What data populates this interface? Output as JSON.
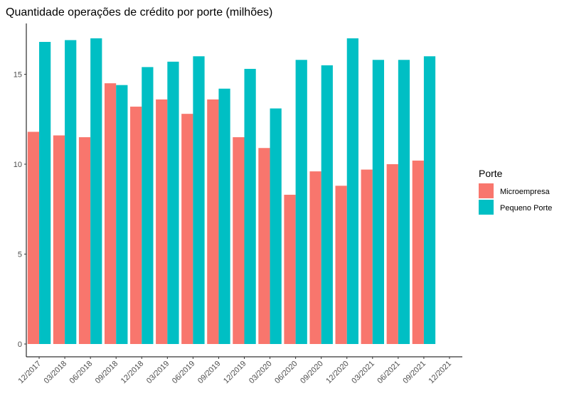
{
  "chart_data": {
    "type": "bar",
    "title": "Quantidade operações de crédito por porte (milhões)",
    "xlabel": "",
    "ylabel": "",
    "ylim": [
      0,
      17.8
    ],
    "y_ticks": [
      "0",
      "5",
      "10",
      "15"
    ],
    "categories": [
      "12/2017",
      "03/2018",
      "06/2018",
      "09/2018",
      "12/2018",
      "03/2019",
      "06/2019",
      "09/2019",
      "12/2019",
      "03/2020",
      "06/2020",
      "09/2020",
      "12/2020",
      "03/2021",
      "06/2021",
      "09/2021",
      "12/2021"
    ],
    "series": [
      {
        "name": "Microempresa",
        "color": "#f8766d",
        "values": [
          11.8,
          11.6,
          11.5,
          14.5,
          13.2,
          13.6,
          12.8,
          13.6,
          11.5,
          10.9,
          8.3,
          9.6,
          8.8,
          9.7,
          10.0,
          10.2,
          null
        ]
      },
      {
        "name": "Pequeno Porte",
        "color": "#00bfc4",
        "values": [
          16.8,
          16.9,
          17.0,
          14.4,
          15.4,
          15.7,
          16.0,
          14.2,
          15.3,
          13.1,
          15.8,
          15.5,
          17.0,
          15.8,
          15.8,
          16.0,
          null
        ]
      }
    ],
    "legend": {
      "title": "Porte",
      "position": "right"
    },
    "grid": false
  }
}
